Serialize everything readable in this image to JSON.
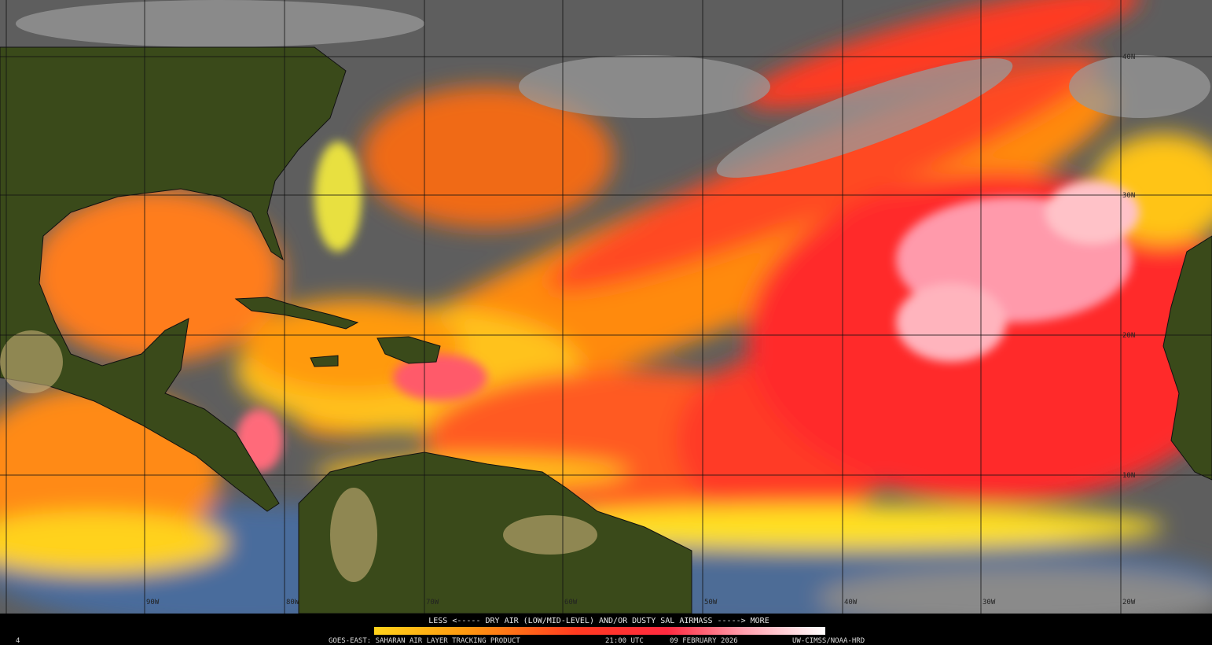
{
  "map": {
    "latitude_labels": [
      "40N",
      "30N",
      "20N",
      "10N"
    ],
    "longitude_labels": [
      "90W",
      "80W",
      "70W",
      "60W",
      "50W",
      "40W",
      "30W",
      "20W"
    ]
  },
  "legend": {
    "caption": "LESS <----- DRY AIR (LOW/MID-LEVEL) AND/OR DUSTY SAL AIRMASS -----> MORE"
  },
  "footer": {
    "frame": "4",
    "product": "GOES-EAST: SAHARAN AIR LAYER TRACKING PRODUCT",
    "time": "21:00 UTC",
    "date": "09 FEBRUARY 2026",
    "credit": "UW-CIMSS/NOAA-HRD"
  }
}
